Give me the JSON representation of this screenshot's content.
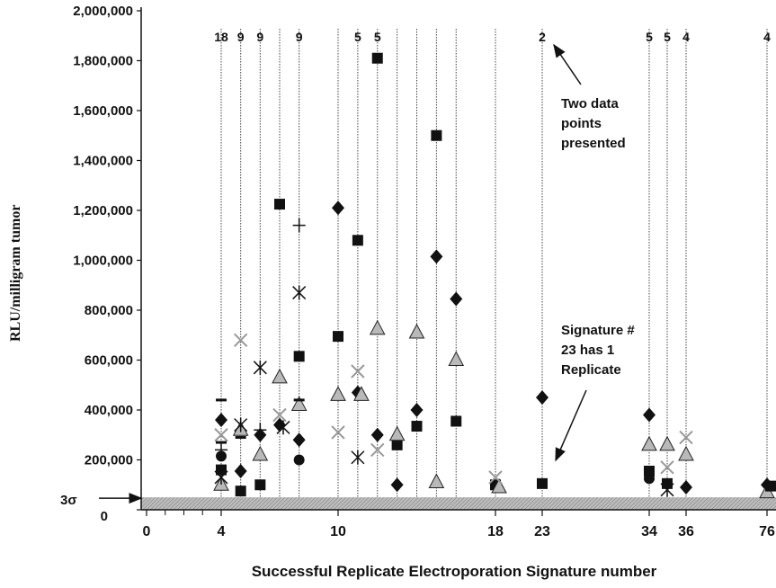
{
  "chart_data": {
    "type": "scatter",
    "title": "",
    "xlabel": "Successful Replicate Electroporation Signature number",
    "ylabel": "RLU/milligram tumor",
    "ylim": [
      0,
      2000000
    ],
    "y_ticks": [
      "0",
      "200,000",
      "400,000",
      "600,000",
      "800,000",
      "1,000,000",
      "1,200,000",
      "1,400,000",
      "1,600,000",
      "1,800,000",
      "2,000,000"
    ],
    "x_ticks": [
      "0",
      "4",
      "10",
      "18",
      "23",
      "34",
      "36",
      "76"
    ],
    "threshold_label": "3σ",
    "threshold_value": 50000,
    "grid": "vertical dotted lines at replicate signatures",
    "replicate_counts": [
      {
        "signature": 4,
        "count": "18"
      },
      {
        "signature": 5,
        "count": "9"
      },
      {
        "signature": 6,
        "count": "9"
      },
      {
        "signature": 8,
        "count": "9"
      },
      {
        "signature": 11,
        "count": "5"
      },
      {
        "signature": 12,
        "count": "5"
      },
      {
        "signature": 23,
        "count": "2"
      },
      {
        "signature": 34,
        "count": "5"
      },
      {
        "signature": 35,
        "count": "5"
      },
      {
        "signature": 36,
        "count": "4"
      },
      {
        "signature": 76,
        "count": "4"
      }
    ],
    "points": [
      {
        "x": 4,
        "y": 360000,
        "marker": "diamond"
      },
      {
        "x": 4,
        "y": 215000,
        "marker": "circle"
      },
      {
        "x": 4,
        "y": 160000,
        "marker": "square"
      },
      {
        "x": 4,
        "y": 100000,
        "marker": "triangle"
      },
      {
        "x": 4,
        "y": 300000,
        "marker": "x"
      },
      {
        "x": 4,
        "y": 130000,
        "marker": "star"
      },
      {
        "x": 4,
        "y": 440000,
        "marker": "dash"
      },
      {
        "x": 4,
        "y": 270000,
        "marker": "dash"
      },
      {
        "x": 4,
        "y": 240000,
        "marker": "plus"
      },
      {
        "x": 5,
        "y": 155000,
        "marker": "diamond"
      },
      {
        "x": 5,
        "y": 75000,
        "marker": "square"
      },
      {
        "x": 5,
        "y": 320000,
        "marker": "triangle"
      },
      {
        "x": 5,
        "y": 680000,
        "marker": "x"
      },
      {
        "x": 5,
        "y": 340000,
        "marker": "star"
      },
      {
        "x": 5,
        "y": 290000,
        "marker": "dash"
      },
      {
        "x": 6,
        "y": 300000,
        "marker": "diamond"
      },
      {
        "x": 6,
        "y": 100000,
        "marker": "square"
      },
      {
        "x": 6,
        "y": 220000,
        "marker": "triangle"
      },
      {
        "x": 6,
        "y": 570000,
        "marker": "star"
      },
      {
        "x": 6,
        "y": 320000,
        "marker": "plus"
      },
      {
        "x": 7,
        "y": 340000,
        "marker": "diamond"
      },
      {
        "x": 7,
        "y": 1225000,
        "marker": "square"
      },
      {
        "x": 7,
        "y": 530000,
        "marker": "triangle"
      },
      {
        "x": 7,
        "y": 330000,
        "marker": "star"
      },
      {
        "x": 7,
        "y": 380000,
        "marker": "x"
      },
      {
        "x": 8,
        "y": 280000,
        "marker": "diamond"
      },
      {
        "x": 8,
        "y": 615000,
        "marker": "square"
      },
      {
        "x": 8,
        "y": 420000,
        "marker": "triangle"
      },
      {
        "x": 8,
        "y": 870000,
        "marker": "star"
      },
      {
        "x": 8,
        "y": 1140000,
        "marker": "plus"
      },
      {
        "x": 8,
        "y": 200000,
        "marker": "circle"
      },
      {
        "x": 8,
        "y": 440000,
        "marker": "dash"
      },
      {
        "x": 10,
        "y": 1210000,
        "marker": "diamond"
      },
      {
        "x": 10,
        "y": 695000,
        "marker": "square"
      },
      {
        "x": 10,
        "y": 460000,
        "marker": "triangle"
      },
      {
        "x": 10,
        "y": 310000,
        "marker": "x"
      },
      {
        "x": 11,
        "y": 470000,
        "marker": "diamond"
      },
      {
        "x": 11,
        "y": 1080000,
        "marker": "square"
      },
      {
        "x": 11,
        "y": 460000,
        "marker": "triangle"
      },
      {
        "x": 11,
        "y": 555000,
        "marker": "x"
      },
      {
        "x": 11,
        "y": 210000,
        "marker": "star"
      },
      {
        "x": 12,
        "y": 300000,
        "marker": "diamond"
      },
      {
        "x": 12,
        "y": 1810000,
        "marker": "square"
      },
      {
        "x": 12,
        "y": 725000,
        "marker": "triangle"
      },
      {
        "x": 12,
        "y": 240000,
        "marker": "x"
      },
      {
        "x": 13,
        "y": 100000,
        "marker": "diamond"
      },
      {
        "x": 13,
        "y": 260000,
        "marker": "square"
      },
      {
        "x": 13,
        "y": 300000,
        "marker": "triangle"
      },
      {
        "x": 14,
        "y": 400000,
        "marker": "diamond"
      },
      {
        "x": 14,
        "y": 335000,
        "marker": "square"
      },
      {
        "x": 14,
        "y": 710000,
        "marker": "triangle"
      },
      {
        "x": 15,
        "y": 1015000,
        "marker": "diamond"
      },
      {
        "x": 15,
        "y": 1500000,
        "marker": "square"
      },
      {
        "x": 15,
        "y": 110000,
        "marker": "triangle"
      },
      {
        "x": 16,
        "y": 845000,
        "marker": "diamond"
      },
      {
        "x": 16,
        "y": 355000,
        "marker": "square"
      },
      {
        "x": 16,
        "y": 600000,
        "marker": "triangle"
      },
      {
        "x": 18,
        "y": 100000,
        "marker": "square"
      },
      {
        "x": 18,
        "y": 90000,
        "marker": "triangle"
      },
      {
        "x": 18,
        "y": 130000,
        "marker": "x"
      },
      {
        "x": 23,
        "y": 450000,
        "marker": "diamond"
      },
      {
        "x": 23,
        "y": 105000,
        "marker": "square"
      },
      {
        "x": 34,
        "y": 380000,
        "marker": "diamond"
      },
      {
        "x": 34,
        "y": 155000,
        "marker": "square"
      },
      {
        "x": 34,
        "y": 125000,
        "marker": "circle"
      },
      {
        "x": 34,
        "y": 260000,
        "marker": "triangle"
      },
      {
        "x": 35,
        "y": 105000,
        "marker": "square"
      },
      {
        "x": 35,
        "y": 260000,
        "marker": "triangle"
      },
      {
        "x": 35,
        "y": 170000,
        "marker": "x"
      },
      {
        "x": 35,
        "y": 80000,
        "marker": "star"
      },
      {
        "x": 36,
        "y": 90000,
        "marker": "diamond"
      },
      {
        "x": 36,
        "y": 220000,
        "marker": "triangle"
      },
      {
        "x": 36,
        "y": 290000,
        "marker": "x"
      },
      {
        "x": 76,
        "y": 100000,
        "marker": "diamond"
      },
      {
        "x": 76,
        "y": 70000,
        "marker": "triangle"
      },
      {
        "x": 76,
        "y": 95000,
        "marker": "square"
      }
    ],
    "annotations": [
      {
        "text_lines": [
          "Two data",
          "points",
          "presented"
        ],
        "points_to_signature": 23
      },
      {
        "text_lines": [
          "Signature #",
          "23  has 1",
          "Replicate"
        ],
        "points_to_signature": 23
      }
    ]
  }
}
